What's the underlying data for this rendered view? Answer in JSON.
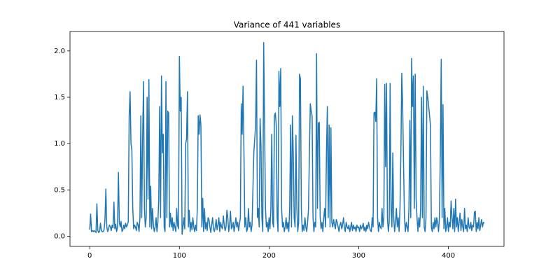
{
  "chart_data": {
    "type": "line",
    "title": "Variance of 441 variables",
    "color": "#1f77b4",
    "xlim": [
      -22,
      462
    ],
    "xticks": [
      0,
      100,
      200,
      300,
      400
    ],
    "ylim": [
      -0.11,
      2.21
    ],
    "yticks": [
      {
        "value": 0,
        "label": "0.0"
      },
      0.5,
      {
        "value": 1,
        "label": "1.0"
      },
      1.5,
      {
        "value": 2,
        "label": "2.0"
      }
    ],
    "values": [
      0.07,
      0.24,
      0.05,
      0.06,
      0.05,
      0.06,
      0.05,
      0.04,
      0.35,
      0.06,
      0.04,
      0.05,
      0.14,
      0.06,
      0.05,
      0.05,
      0.07,
      0.18,
      0.51,
      0.1,
      0.05,
      0.08,
      0.12,
      0.1,
      0.06,
      0.12,
      0.09,
      0.37,
      0.08,
      0.13,
      0.05,
      0.1,
      0.69,
      0.15,
      0.1,
      0.16,
      0.05,
      0.07,
      0.12,
      0.08,
      0.14,
      0.1,
      0.12,
      0.16,
      1.3,
      1.56,
      1.0,
      0.93,
      0.3,
      0.08,
      0.12,
      0.1,
      0.06,
      0.15,
      0.12,
      0.05,
      0.2,
      1.3,
      0.2,
      1.05,
      1.67,
      0.3,
      0.1,
      0.2,
      1.5,
      0.4,
      1.69,
      0.1,
      0.54,
      0.08,
      0.3,
      0.12,
      0.05,
      0.1,
      0.2,
      0.05,
      0.15,
      0.4,
      1.4,
      0.2,
      1.73,
      0.9,
      1.1,
      0.1,
      0.05,
      1.67,
      0.2,
      1.35,
      1.33,
      0.1,
      0.25,
      0.1,
      0.2,
      0.06,
      0.15,
      0.1,
      0.05,
      0.3,
      0.12,
      0.08,
      1.94,
      1.35,
      1.5,
      0.02,
      0.1,
      0.2,
      0.08,
      1.0,
      1.05,
      1.56,
      0.1,
      0.28,
      0.05,
      0.15,
      0.07,
      0.2,
      0.1,
      0.05,
      0.12,
      0.06,
      0.3,
      1.3,
      1.1,
      1.31,
      1.2,
      0.1,
      0.41,
      0.05,
      0.3,
      0.08,
      0.15,
      0.06,
      0.2,
      0.18,
      0.1,
      0.04,
      0.12,
      0.2,
      0.08,
      0.05,
      0.1,
      0.18,
      0.07,
      0.12,
      0.2,
      0.05,
      0.15,
      0.1,
      0.08,
      0.22,
      0.12,
      0.06,
      0.1,
      0.28,
      0.2,
      0.05,
      0.12,
      0.27,
      0.08,
      0.1,
      0.15,
      0.05,
      0.12,
      0.2,
      0.1,
      0.15,
      0.06,
      0.13,
      0.2,
      1.43,
      1.1,
      1.62,
      0.9,
      0.1,
      0.2,
      0.05,
      0.08,
      0.3,
      0.1,
      0.15,
      0.05,
      0.12,
      0.5,
      0.9,
      1.05,
      1.2,
      1.9,
      0.2,
      0.3,
      0.1,
      1.27,
      0.97,
      0.2,
      0.05,
      2.09,
      1.2,
      0.3,
      0.1,
      0.15,
      0.05,
      0.2,
      0.08,
      0.3,
      1.1,
      0.15,
      0.1,
      1.3,
      1.33,
      1.2,
      0.2,
      0.05,
      1.78,
      1.4,
      1.81,
      0.3,
      0.1,
      0.15,
      0.05,
      0.1,
      0.2,
      0.08,
      0.15,
      0.05,
      0.3,
      1.2,
      0.1,
      1.3,
      0.9,
      0.2,
      0.1,
      1.09,
      0.3,
      0.05,
      0.15,
      1.75,
      1.7,
      0.3,
      0.05,
      0.12,
      0.06,
      0.2,
      0.1,
      0.05,
      0.15,
      0.3,
      0.9,
      1.43,
      1.35,
      1.3,
      0.2,
      0.05,
      0.15,
      0.1,
      1.97,
      0.3,
      1.22,
      1.23,
      0.2,
      0.08,
      0.15,
      0.05,
      0.2,
      0.3,
      0.1,
      0.9,
      1.4,
      0.2,
      1.2,
      0.1,
      1.17,
      0.15,
      0.1,
      0.18,
      0.12,
      0.08,
      0.18,
      0.15,
      0.1,
      0.05,
      0.12,
      0.15,
      0.08,
      0.12,
      0.2,
      0.1,
      0.05,
      0.15,
      0.1,
      0.08,
      0.12,
      0.05,
      0.1,
      0.15,
      0.06,
      0.12,
      0.08,
      0.1,
      0.05,
      0.12,
      0.09,
      0.1,
      0.05,
      0.12,
      0.08,
      0.1,
      0.14,
      0.06,
      0.1,
      0.05,
      0.12,
      0.08,
      0.15,
      0.1,
      0.06,
      0.05,
      0.2,
      0.1,
      1.33,
      1.34,
      1.24,
      1.7,
      0.2,
      0.05,
      0.15,
      0.1,
      0.08,
      0.3,
      0.1,
      0.2,
      1.64,
      0.75,
      1.65,
      0.2,
      0.05,
      0.15,
      1.65,
      0.3,
      0.1,
      0.9,
      0.2,
      0.05,
      0.15,
      0.3,
      0.1,
      0.2,
      0.05,
      0.3,
      0.9,
      1.76,
      1.4,
      0.76,
      0.2,
      0.05,
      0.15,
      0.1,
      0.05,
      0.3,
      1.25,
      0.2,
      1.92,
      1.4,
      1.73,
      0.3,
      1.75,
      0.4,
      0.2,
      0.05,
      0.2,
      0.1,
      0.3,
      1.5,
      0.2,
      1.62,
      0.1,
      0.05,
      0.2,
      1.57,
      1.5,
      1.4,
      1.3,
      1.2,
      0.1,
      0.05,
      0.15,
      0.08,
      0.2,
      0.1,
      0.2,
      0.15,
      0.05,
      0.2,
      0.9,
      1.91,
      0.2,
      1.42,
      0.08,
      0.3,
      0.05,
      0.1,
      0.2,
      0.05,
      0.15,
      0.1,
      0.38,
      0.2,
      0.08,
      0.3,
      0.05,
      0.4,
      0.1,
      0.2,
      0.05,
      0.15,
      0.25,
      0.06,
      0.18,
      0.1,
      0.05,
      0.3,
      0.08,
      0.12,
      0.05,
      0.2,
      0.1,
      0.08,
      0.15,
      0.06,
      0.12,
      0.1,
      0.26,
      0.27,
      0.05,
      0.15,
      0.08,
      0.2,
      0.06,
      0.12,
      0.18,
      0.1,
      0.15,
      0.14
    ]
  }
}
